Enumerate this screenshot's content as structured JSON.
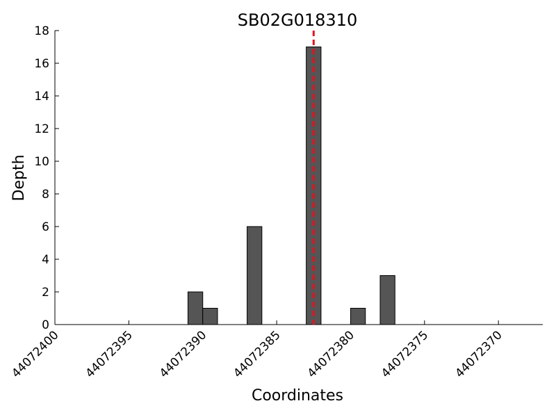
{
  "chart_data": {
    "type": "histogram",
    "title": "SB02G018310",
    "xlabel": "Coordinates",
    "ylabel": "Depth",
    "bins": [
      44072391,
      44072390,
      44072389,
      44072388,
      44072387,
      44072386,
      44072385,
      44072384,
      44072383,
      44072382,
      44072381,
      44072380,
      44072379,
      44072378,
      44072377
    ],
    "values": [
      2,
      1,
      0,
      0,
      6,
      0,
      0,
      0,
      17,
      0,
      0,
      1,
      0,
      3
    ],
    "color": "#555555",
    "xlim": [
      44072400,
      44072367
    ],
    "ylim": [
      0,
      18
    ],
    "xticks": [
      44072400,
      44072395,
      44072390,
      44072385,
      44072380,
      44072375,
      44072370
    ],
    "yticks": [
      0,
      2,
      4,
      6,
      8,
      10,
      12,
      14,
      16,
      18
    ],
    "vline": {
      "x": 44072382.5,
      "color": "#e8111e"
    }
  }
}
